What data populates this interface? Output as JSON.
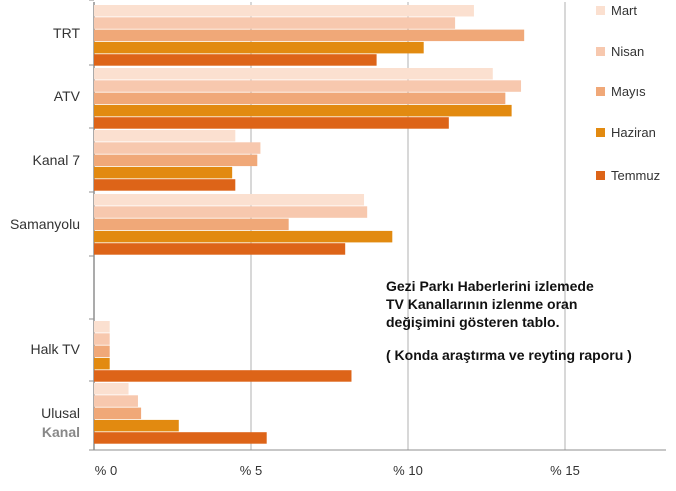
{
  "chart_data": {
    "type": "bar",
    "orientation": "horizontal",
    "categories": [
      "TRT",
      "ATV",
      "Kanal 7",
      "Samanyolu",
      "Halk TV",
      "Ulusal Kanal"
    ],
    "category_lines": [
      [
        "TRT"
      ],
      [
        "ATV"
      ],
      [
        "Kanal 7"
      ],
      [
        "Samanyolu"
      ],
      [
        "Halk TV"
      ],
      [
        "Ulusal",
        "Kanal"
      ]
    ],
    "series": [
      {
        "name": "Mart",
        "color": "#fbe0d0",
        "values": [
          12.1,
          12.7,
          4.5,
          8.6,
          0.5,
          1.1
        ]
      },
      {
        "name": "Nisan",
        "color": "#f7c8ae",
        "values": [
          11.5,
          13.6,
          5.3,
          8.7,
          0.5,
          1.4
        ]
      },
      {
        "name": "Mayıs",
        "color": "#f0a878",
        "values": [
          13.7,
          13.1,
          5.2,
          6.2,
          0.5,
          1.5
        ]
      },
      {
        "name": "Haziran",
        "color": "#e28a10",
        "values": [
          10.5,
          13.3,
          4.4,
          9.5,
          0.5,
          2.7
        ]
      },
      {
        "name": "Temmuz",
        "color": "#dd6418",
        "values": [
          9.0,
          11.3,
          4.5,
          8.0,
          8.2,
          5.5
        ]
      }
    ],
    "x_ticks": [
      {
        "value": 0,
        "label": "% 0"
      },
      {
        "value": 5,
        "label": "% 5"
      },
      {
        "value": 10,
        "label": "% 10"
      },
      {
        "value": 15,
        "label": "% 15"
      }
    ],
    "xlim": [
      0,
      18
    ],
    "grid": true,
    "legend_position": "right"
  },
  "annotation": {
    "line1": "Gezi Parkı Haberlerini izlemede",
    "line2": "TV Kanallarının izlenme oran",
    "line3": "değişimini gösteren tablo.",
    "line4": "( Konda araştırma ve reyting raporu )"
  }
}
